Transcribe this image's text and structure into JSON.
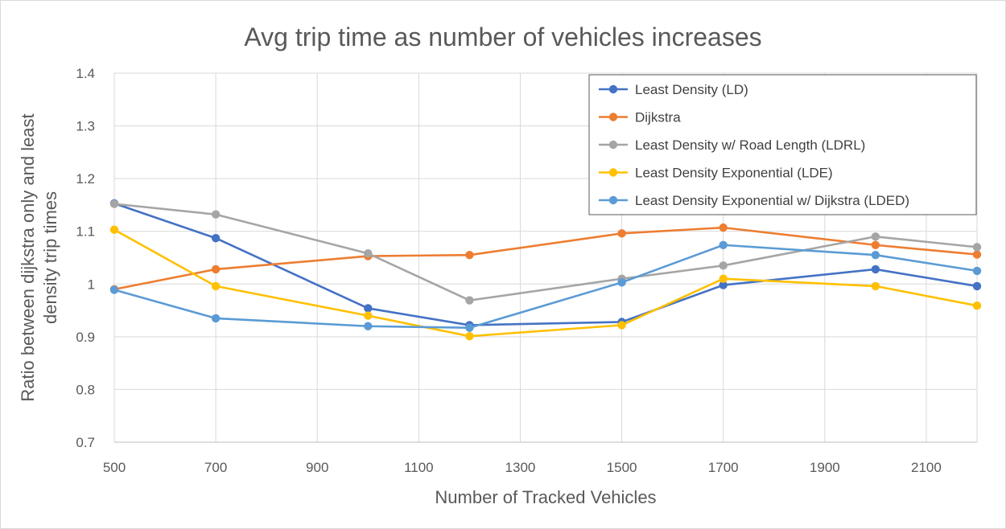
{
  "chart_data": {
    "type": "line",
    "title": "Avg trip time as number of vehicles increases",
    "xlabel": "Number of Tracked Vehicles",
    "ylabel": "Ratio between dijkstra only and least density trip times",
    "xlim": [
      500,
      2200
    ],
    "ylim": [
      0.7,
      1.4
    ],
    "x_ticks": [
      "500",
      "700",
      "900",
      "1100",
      "1300",
      "1500",
      "1700",
      "1900",
      "2100"
    ],
    "y_ticks": [
      "0.7",
      "0.8",
      "0.9",
      "1",
      "1.1",
      "1.2",
      "1.3",
      "1.4"
    ],
    "grid": "on",
    "legend_position": "top-right",
    "x": [
      500,
      700,
      1000,
      1200,
      1500,
      1700,
      2000,
      2200
    ],
    "series": [
      {
        "name": "Least Density (LD)",
        "color": "#4472c4",
        "values": [
          1.153,
          1.087,
          0.954,
          0.922,
          0.928,
          0.998,
          1.028,
          0.996
        ]
      },
      {
        "name": "Dijkstra",
        "color": "#ed7d31",
        "values": [
          0.99,
          1.028,
          1.053,
          1.055,
          1.096,
          1.107,
          1.074,
          1.056
        ]
      },
      {
        "name": "Least Density w/ Road Length (LDRL)",
        "color": "#a5a5a5",
        "values": [
          1.152,
          1.132,
          1.058,
          0.969,
          1.01,
          1.035,
          1.09,
          1.07
        ]
      },
      {
        "name": "Least Density Exponential (LDE)",
        "color": "#ffc000",
        "values": [
          1.103,
          0.996,
          0.94,
          0.901,
          0.922,
          1.01,
          0.996,
          0.959
        ]
      },
      {
        "name": "Least Density Exponential w/ Dijkstra (LDED)",
        "color": "#5b9bd5",
        "values": [
          0.989,
          0.935,
          0.92,
          0.917,
          1.003,
          1.074,
          1.055,
          1.025
        ]
      }
    ]
  }
}
